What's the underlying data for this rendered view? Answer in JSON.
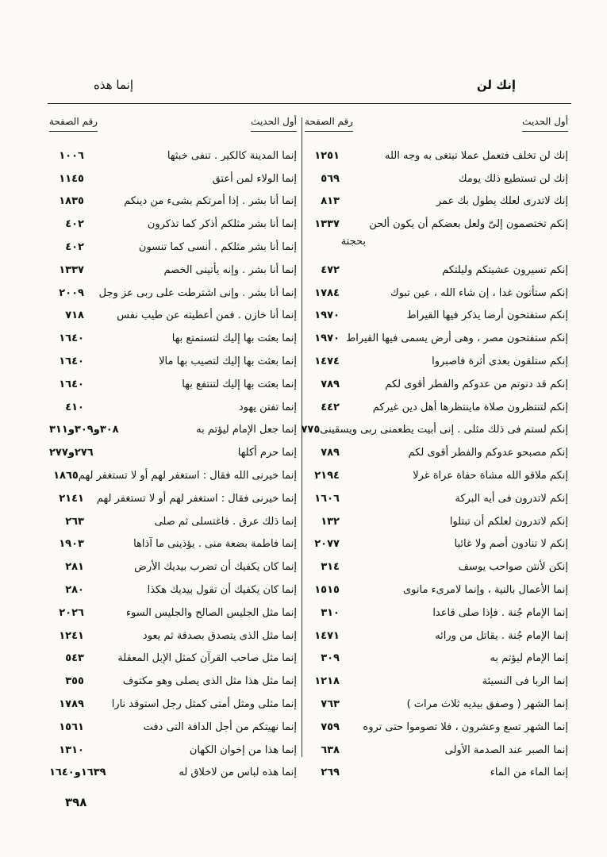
{
  "header": {
    "right": "إنك لن",
    "left": "إنما هذه"
  },
  "columns": {
    "right": {
      "head_text": "أول الحديث",
      "head_page": "رقم الصفحة",
      "rows": [
        {
          "text": "إنك لن تخلف فتعمل عملا تبتغى به وجه الله",
          "page": "١٢٥١"
        },
        {
          "text": "إنك لن تستطيع ذلك يومك",
          "page": "٥٦٩"
        },
        {
          "text": "إنك لاتدرى لعلك يطول بك عمر",
          "page": "٨١٣"
        },
        {
          "text": "إنكم تختصمون إلىّ ولعل بعضكم أن يكون ألحن",
          "page": "١٣٣٧",
          "cont": "بحجتة"
        },
        {
          "text": "إنكم تسيرون عشيتكم وليلتكم",
          "page": "٤٧٢"
        },
        {
          "text": "إنكم ستأتون غدا ، إن شاء الله ، عين تبوك",
          "page": "١٧٨٤"
        },
        {
          "text": "إنكم ستفتحون أرضا يذكر فيها القيراط",
          "page": "١٩٧٠"
        },
        {
          "text": "إنكم ستفتحون مصر ، وهى أرض يسمى فيها القيراط",
          "page": "١٩٧٠"
        },
        {
          "text": "إنكم ستلقون بعدى أثرة فاصبروا",
          "page": "١٤٧٤"
        },
        {
          "text": "إنكم قد دنوتم من عدوكم والفطر أقوى لكم",
          "page": "٧٨٩"
        },
        {
          "text": "إنكم لتنتظرون صلاة ماينتظرها أهل دين غيركم",
          "page": "٤٤٢"
        },
        {
          "text": "إنكم لستم فى ذلك مثلى . إنى أبيت يطعمنى ربى ويسقينى",
          "page": "٧٧٥"
        },
        {
          "text": "إنكم مصبحو عدوكم والفطر أقوى لكم",
          "page": "٧٨٩"
        },
        {
          "text": "إنكم ملاقو الله مشاة حفاة عراة غرلا",
          "page": "٢١٩٤"
        },
        {
          "text": "إنكم لاتدرون فى أيه البركة",
          "page": "١٦٠٦"
        },
        {
          "text": "إنكم لاتدرون لعلكم أن تبتلوا",
          "page": "١٣٢"
        },
        {
          "text": "إنكم لا تنادون أصم ولا غائبا",
          "page": "٢٠٧٧"
        },
        {
          "text": "إنكن لأنتن صواحب يوسف",
          "page": "٣١٤"
        },
        {
          "text": "إنما الأعمال بالنية ، وإنما لامرىء مانوى",
          "page": "١٥١٥"
        },
        {
          "text": "إنما الإمام جُنة . فإذا صلى قاعدا",
          "page": "٣١٠"
        },
        {
          "text": "إنما الإمام جُنة . يقاتل من ورائه",
          "page": "١٤٧١"
        },
        {
          "text": "إنما الإمام ليؤتم به",
          "page": "٣٠٩"
        },
        {
          "text": "إنما الربا فى النسيئة",
          "page": "١٢١٨"
        },
        {
          "text": "إنما الشهر ( وصفق بيديه ثلاث مرات )",
          "page": "٧٦٣"
        },
        {
          "text": "إنما الشهر تسع وعشرون ، فلا تصوموا حتى تروه",
          "page": "٧٥٩"
        },
        {
          "text": "إنما الصبر عند الصدمة الأولى",
          "page": "٦٣٨"
        },
        {
          "text": "إنما الماء من الماء",
          "page": "٢٦٩"
        }
      ]
    },
    "left": {
      "head_text": "أول الحديث",
      "head_page": "رقم الصفحة",
      "rows": [
        {
          "text": "إنما المدينة كالكير . تنفى خبثها",
          "page": "١٠٠٦"
        },
        {
          "text": "إنما الولاء لمن أعتق",
          "page": "١١٤٥"
        },
        {
          "text": "إنما أنا بشر . إذا أمرتكم بشىء من دينكم",
          "page": "١٨٣٥"
        },
        {
          "text": "إنما أنا بشر مثلكم أذكر كما تذكرون",
          "page": "٤٠٢"
        },
        {
          "text": "إنما أنا بشر مثلكم . أنسى كما تنسون",
          "page": "٤٠٢"
        },
        {
          "text": "إنما أنا بشر . وإنه يأتينى الخصم",
          "page": "١٣٣٧"
        },
        {
          "text": "إنما أنا بشر . وإنى اشترطت على ربى عز وجل",
          "page": "٢٠٠٩"
        },
        {
          "text": "إنما أنا خازن . فمن أعطيته عن طيب نفس",
          "page": "٧١٨"
        },
        {
          "text": "إنما بعثت بها إليك لتستمتع بها",
          "page": "١٦٤٠"
        },
        {
          "text": "إنما بعثت بها إليك لتصيب بها مالا",
          "page": "١٦٤٠"
        },
        {
          "text": "إنما بعثت بها إليك لتنتفع بها",
          "page": "١٦٤٠"
        },
        {
          "text": "إنما تفتن يهود",
          "page": "٤١٠"
        },
        {
          "text": "إنما جعل الإمام ليؤتم به",
          "page": "٣٠٨و٣٠٩و٣١١"
        },
        {
          "text": "إنما حرم أكلها",
          "page": "٢٧٦و٢٧٧"
        },
        {
          "text": "إنما خيرنى الله فقال : استغفر لهم أو لا تستغفر لهم",
          "page": "١٨٦٥"
        },
        {
          "text": "إنما خيرنى فقال : استغفر لهم أو لا تستغفر لهم",
          "page": "٢١٤١"
        },
        {
          "text": "إنما ذلك عرق . فاغتسلى ثم صلى",
          "page": "٢٦٣"
        },
        {
          "text": "إنما فاطمة بضعة منى . يؤذينى ما آذاها",
          "page": "١٩٠٣"
        },
        {
          "text": "إنما كان يكفيك أن تضرب بيديك الأرض",
          "page": "٢٨١"
        },
        {
          "text": "إنما كان يكفيك أن تقول بيديك هكذا",
          "page": "٢٨٠"
        },
        {
          "text": "إنما مثل الجليس الصالح والجليس السوء",
          "page": "٢٠٢٦"
        },
        {
          "text": "إنما مثل الذى يتصدق بصدقة ثم يعود",
          "page": "١٢٤١"
        },
        {
          "text": "إنما مثل صاحب القرآن كمثل الإبل المعقلة",
          "page": "٥٤٣"
        },
        {
          "text": "إنما مثل هذا مثل الذى يصلى وهو مكتوف",
          "page": "٣٥٥"
        },
        {
          "text": "إنما مثلى ومثل أمتى كمثل رجل استوقد نارا",
          "page": "١٧٨٩"
        },
        {
          "text": "إنما نهيتكم من أجل الدافة التى دفت",
          "page": "١٥٦١"
        },
        {
          "text": "إنما هذا من إخوان الكهان",
          "page": "١٣١٠"
        },
        {
          "text": "إنما هذه لباس من لاخلاق له",
          "page": "١٦٣٩و١٦٤٠"
        }
      ]
    }
  },
  "page_number": "٣٩٨"
}
